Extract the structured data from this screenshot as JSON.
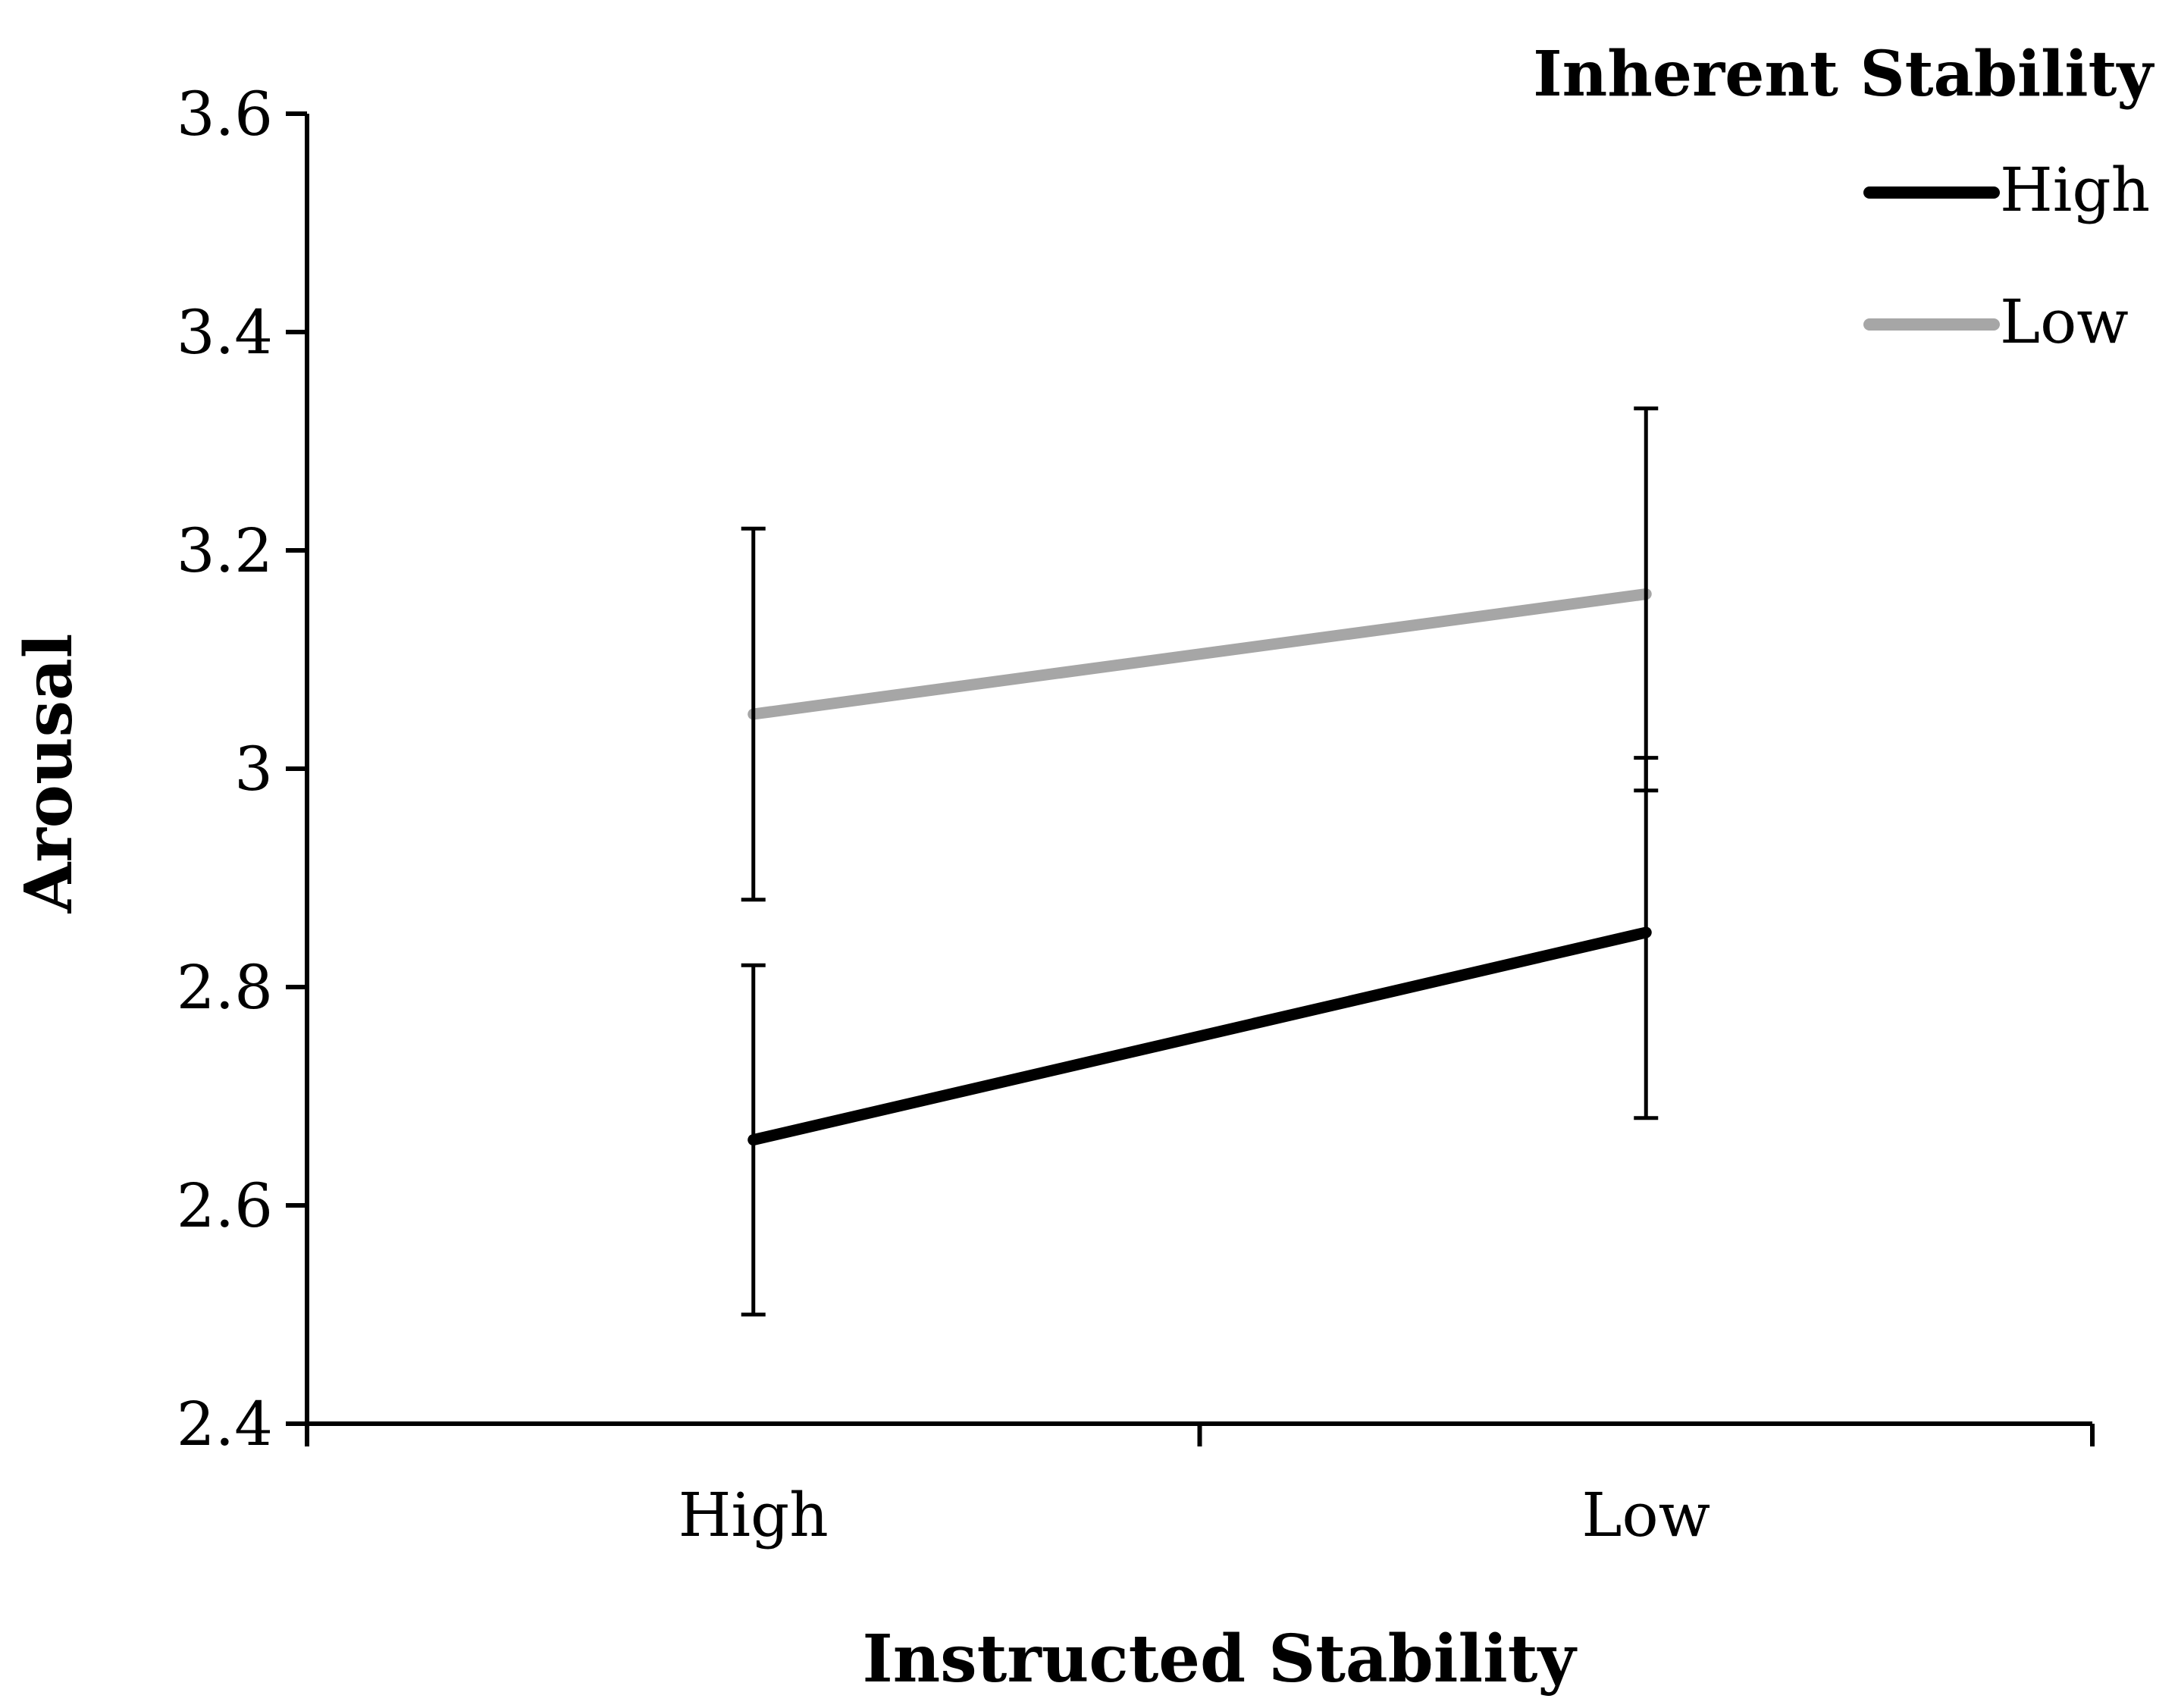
{
  "chart_data": {
    "type": "line",
    "title": "",
    "xlabel": "Instructed Stability",
    "ylabel": "Arousal",
    "categories": [
      "High",
      "Low"
    ],
    "ylim": [
      2.4,
      3.6
    ],
    "yticks": [
      "2.4",
      "2.6",
      "2.8",
      "3",
      "3.2",
      "3.4",
      "3.6"
    ],
    "grid": false,
    "legend": {
      "title": "Inherent Stability",
      "placement": "top-right"
    },
    "series": [
      {
        "name": "High",
        "color": "#000000",
        "values": [
          2.66,
          2.85
        ],
        "error_low": [
          2.5,
          2.68
        ],
        "error_high": [
          2.82,
          3.01
        ]
      },
      {
        "name": "Low",
        "color": "#a6a6a6",
        "values": [
          3.05,
          3.16
        ],
        "error_low": [
          2.88,
          2.98
        ],
        "error_high": [
          3.22,
          3.33
        ]
      }
    ]
  }
}
